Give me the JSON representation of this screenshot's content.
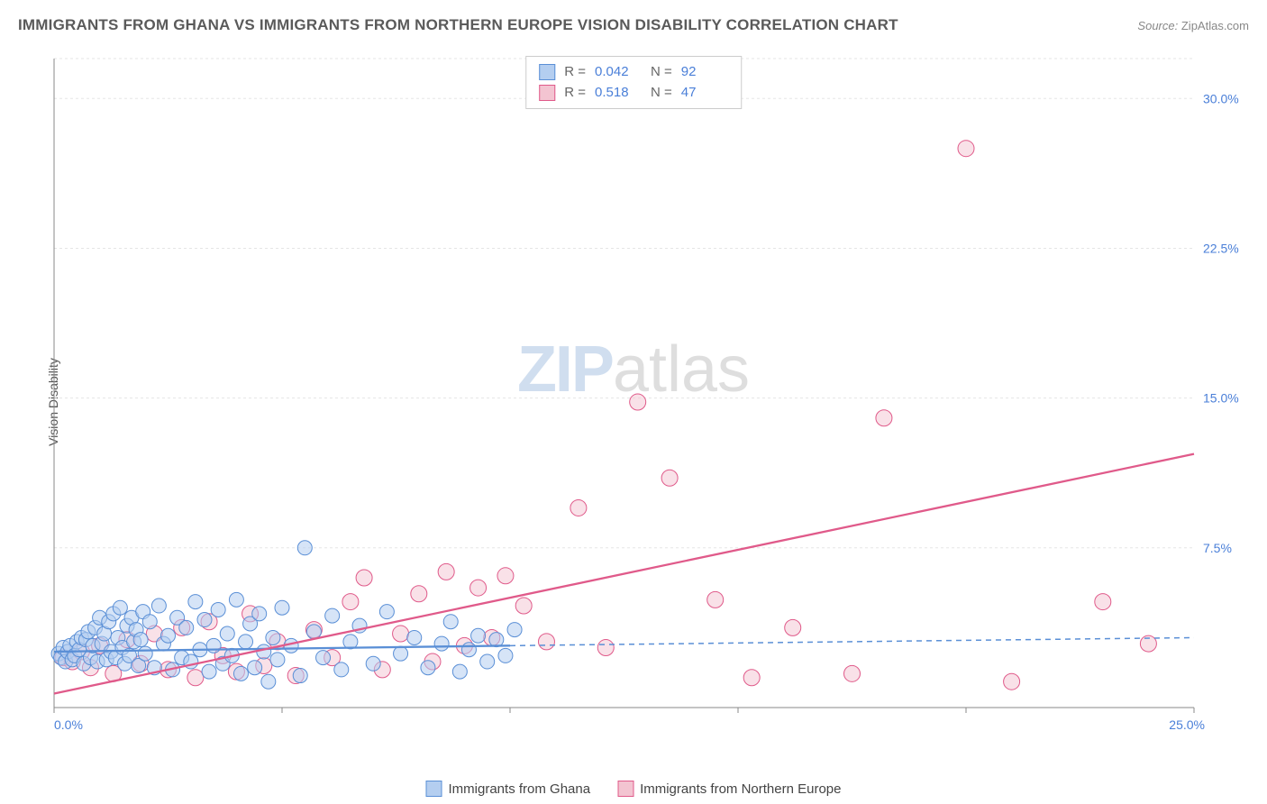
{
  "title": "IMMIGRANTS FROM GHANA VS IMMIGRANTS FROM NORTHERN EUROPE VISION DISABILITY CORRELATION CHART",
  "source_label": "Source:",
  "source_value": "ZipAtlas.com",
  "ylabel": "Vision Disability",
  "watermark_a": "ZIP",
  "watermark_b": "atlas",
  "chart": {
    "type": "scatter",
    "xlim": [
      0,
      25
    ],
    "ylim": [
      -0.5,
      32
    ],
    "xticks": [
      0,
      5,
      10,
      15,
      20,
      25
    ],
    "xtick_labels": [
      "0.0%",
      "",
      "",
      "",
      "",
      "25.0%"
    ],
    "yticks": [
      7.5,
      15.0,
      22.5,
      30.0
    ],
    "ytick_labels": [
      "7.5%",
      "15.0%",
      "22.5%",
      "30.0%"
    ],
    "grid_color": "#e5e5e5",
    "axis_color": "#888",
    "background": "#ffffff",
    "tick_label_color": "#4a7fd8",
    "tick_label_fontsize": 14
  },
  "series": {
    "ghana": {
      "label": "Immigrants from Ghana",
      "fill": "#b4cef0",
      "stroke": "#5a8fd6",
      "fill_opacity": 0.55,
      "marker_r": 8,
      "R_label": "R =",
      "R_value": "0.042",
      "N_label": "N =",
      "N_value": "92",
      "trend": {
        "solid_x": [
          0,
          10
        ],
        "solid_y": [
          2.3,
          2.6
        ],
        "dash_x": [
          10,
          25
        ],
        "dash_y": [
          2.6,
          3.0
        ],
        "width": 2.3
      },
      "points": [
        [
          0.1,
          2.2
        ],
        [
          0.15,
          2.0
        ],
        [
          0.2,
          2.5
        ],
        [
          0.25,
          1.8
        ],
        [
          0.3,
          2.3
        ],
        [
          0.35,
          2.6
        ],
        [
          0.4,
          1.9
        ],
        [
          0.45,
          2.1
        ],
        [
          0.5,
          2.8
        ],
        [
          0.55,
          2.4
        ],
        [
          0.6,
          3.0
        ],
        [
          0.65,
          1.7
        ],
        [
          0.7,
          2.9
        ],
        [
          0.75,
          3.3
        ],
        [
          0.8,
          2.0
        ],
        [
          0.85,
          2.6
        ],
        [
          0.9,
          3.5
        ],
        [
          0.95,
          1.8
        ],
        [
          1.0,
          4.0
        ],
        [
          1.05,
          2.7
        ],
        [
          1.1,
          3.2
        ],
        [
          1.15,
          1.9
        ],
        [
          1.2,
          3.8
        ],
        [
          1.25,
          2.3
        ],
        [
          1.3,
          4.2
        ],
        [
          1.35,
          2.0
        ],
        [
          1.4,
          3.0
        ],
        [
          1.45,
          4.5
        ],
        [
          1.5,
          2.5
        ],
        [
          1.55,
          1.7
        ],
        [
          1.6,
          3.6
        ],
        [
          1.65,
          2.1
        ],
        [
          1.7,
          4.0
        ],
        [
          1.75,
          2.8
        ],
        [
          1.8,
          3.4
        ],
        [
          1.85,
          1.6
        ],
        [
          1.9,
          2.9
        ],
        [
          1.95,
          4.3
        ],
        [
          2.0,
          2.2
        ],
        [
          2.1,
          3.8
        ],
        [
          2.2,
          1.5
        ],
        [
          2.3,
          4.6
        ],
        [
          2.4,
          2.7
        ],
        [
          2.5,
          3.1
        ],
        [
          2.6,
          1.4
        ],
        [
          2.7,
          4.0
        ],
        [
          2.8,
          2.0
        ],
        [
          2.9,
          3.5
        ],
        [
          3.0,
          1.8
        ],
        [
          3.1,
          4.8
        ],
        [
          3.2,
          2.4
        ],
        [
          3.3,
          3.9
        ],
        [
          3.4,
          1.3
        ],
        [
          3.5,
          2.6
        ],
        [
          3.6,
          4.4
        ],
        [
          3.7,
          1.7
        ],
        [
          3.8,
          3.2
        ],
        [
          3.9,
          2.1
        ],
        [
          4.0,
          4.9
        ],
        [
          4.1,
          1.2
        ],
        [
          4.2,
          2.8
        ],
        [
          4.3,
          3.7
        ],
        [
          4.4,
          1.5
        ],
        [
          4.5,
          4.2
        ],
        [
          4.6,
          2.3
        ],
        [
          4.7,
          0.8
        ],
        [
          4.8,
          3.0
        ],
        [
          4.9,
          1.9
        ],
        [
          5.0,
          4.5
        ],
        [
          5.2,
          2.6
        ],
        [
          5.4,
          1.1
        ],
        [
          5.5,
          7.5
        ],
        [
          5.7,
          3.3
        ],
        [
          5.9,
          2.0
        ],
        [
          6.1,
          4.1
        ],
        [
          6.3,
          1.4
        ],
        [
          6.5,
          2.8
        ],
        [
          6.7,
          3.6
        ],
        [
          7.0,
          1.7
        ],
        [
          7.3,
          4.3
        ],
        [
          7.6,
          2.2
        ],
        [
          7.9,
          3.0
        ],
        [
          8.2,
          1.5
        ],
        [
          8.5,
          2.7
        ],
        [
          8.7,
          3.8
        ],
        [
          8.9,
          1.3
        ],
        [
          9.1,
          2.4
        ],
        [
          9.3,
          3.1
        ],
        [
          9.5,
          1.8
        ],
        [
          9.7,
          2.9
        ],
        [
          9.9,
          2.1
        ],
        [
          10.1,
          3.4
        ]
      ]
    },
    "neurope": {
      "label": "Immigrants from Northern Europe",
      "fill": "#f3c4d1",
      "stroke": "#e05a8a",
      "fill_opacity": 0.5,
      "marker_r": 9,
      "R_label": "R =",
      "R_value": "0.518",
      "N_label": "N =",
      "N_value": "47",
      "trend": {
        "solid_x": [
          0,
          25
        ],
        "solid_y": [
          0.2,
          12.2
        ],
        "width": 2.3
      },
      "points": [
        [
          0.2,
          2.0
        ],
        [
          0.4,
          1.8
        ],
        [
          0.6,
          2.3
        ],
        [
          0.8,
          1.5
        ],
        [
          1.0,
          2.6
        ],
        [
          1.3,
          1.2
        ],
        [
          1.6,
          2.9
        ],
        [
          1.9,
          1.7
        ],
        [
          2.2,
          3.2
        ],
        [
          2.5,
          1.4
        ],
        [
          2.8,
          3.5
        ],
        [
          3.1,
          1.0
        ],
        [
          3.4,
          3.8
        ],
        [
          3.7,
          2.1
        ],
        [
          4.0,
          1.3
        ],
        [
          4.3,
          4.2
        ],
        [
          4.6,
          1.6
        ],
        [
          4.9,
          2.8
        ],
        [
          5.3,
          1.1
        ],
        [
          5.7,
          3.4
        ],
        [
          6.1,
          2.0
        ],
        [
          6.5,
          4.8
        ],
        [
          6.8,
          6.0
        ],
        [
          7.2,
          1.4
        ],
        [
          7.6,
          3.2
        ],
        [
          8.0,
          5.2
        ],
        [
          8.3,
          1.8
        ],
        [
          8.6,
          6.3
        ],
        [
          9.0,
          2.6
        ],
        [
          9.3,
          5.5
        ],
        [
          9.6,
          3.0
        ],
        [
          9.9,
          6.1
        ],
        [
          10.3,
          4.6
        ],
        [
          10.8,
          2.8
        ],
        [
          11.5,
          9.5
        ],
        [
          12.1,
          2.5
        ],
        [
          12.8,
          14.8
        ],
        [
          13.5,
          11.0
        ],
        [
          14.5,
          4.9
        ],
        [
          15.3,
          1.0
        ],
        [
          16.2,
          3.5
        ],
        [
          17.5,
          1.2
        ],
        [
          18.2,
          14.0
        ],
        [
          20.0,
          27.5
        ],
        [
          21.0,
          0.8
        ],
        [
          23.0,
          4.8
        ],
        [
          24.0,
          2.7
        ]
      ]
    }
  }
}
